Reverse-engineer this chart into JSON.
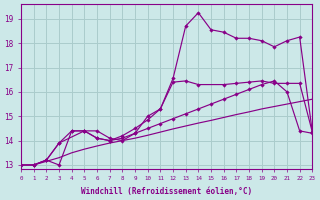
{
  "bg_color": "#cce8e8",
  "grid_color": "#aacccc",
  "line_color": "#880088",
  "xlabel": "Windchill (Refroidissement éolien,°C)",
  "xlim": [
    0,
    23
  ],
  "ylim": [
    12.85,
    19.6
  ],
  "yticks": [
    13,
    14,
    15,
    16,
    17,
    18,
    19
  ],
  "xticks": [
    0,
    1,
    2,
    3,
    4,
    5,
    6,
    7,
    8,
    9,
    10,
    11,
    12,
    13,
    14,
    15,
    16,
    17,
    18,
    19,
    20,
    21,
    22,
    23
  ],
  "line1_x": [
    0,
    1,
    2,
    3,
    4,
    5,
    6,
    7,
    8,
    9,
    10,
    11,
    12,
    13,
    14,
    15,
    16,
    17,
    18,
    19,
    20,
    21,
    22,
    23
  ],
  "line1_y": [
    13.0,
    13.0,
    13.15,
    13.3,
    13.5,
    13.65,
    13.78,
    13.9,
    14.0,
    14.1,
    14.22,
    14.35,
    14.48,
    14.6,
    14.72,
    14.83,
    14.95,
    15.07,
    15.18,
    15.3,
    15.4,
    15.5,
    15.6,
    15.7
  ],
  "line2_x": [
    0,
    1,
    2,
    3,
    4,
    5,
    6,
    7,
    8,
    9,
    10,
    11,
    12,
    13,
    14,
    15,
    16,
    17,
    18,
    19,
    20,
    21,
    22,
    23
  ],
  "line2_y": [
    13.0,
    13.0,
    13.2,
    13.0,
    14.4,
    14.4,
    14.1,
    14.0,
    14.1,
    14.3,
    14.5,
    14.7,
    14.9,
    15.1,
    15.3,
    15.5,
    15.7,
    15.9,
    16.1,
    16.3,
    16.45,
    16.0,
    14.4,
    14.3
  ],
  "line3_x": [
    0,
    1,
    2,
    3,
    4,
    5,
    6,
    7,
    8,
    9,
    10,
    11,
    12,
    13,
    14,
    16,
    17,
    18,
    19,
    20,
    21,
    22,
    23
  ],
  "line3_y": [
    13.0,
    13.0,
    13.2,
    13.9,
    14.4,
    14.4,
    14.1,
    14.0,
    14.2,
    14.5,
    14.85,
    15.3,
    16.4,
    16.45,
    16.3,
    16.3,
    16.35,
    16.4,
    16.45,
    16.35,
    16.35,
    16.35,
    14.35
  ],
  "line4_x": [
    1,
    2,
    3,
    5,
    6,
    7,
    8,
    9,
    10,
    11,
    12,
    13,
    14,
    15,
    16,
    17,
    18,
    19,
    20,
    21,
    22,
    23
  ],
  "line4_y": [
    13.0,
    13.2,
    13.9,
    14.4,
    14.4,
    14.1,
    14.0,
    14.3,
    15.0,
    15.3,
    16.55,
    18.7,
    19.25,
    18.55,
    18.45,
    18.2,
    18.2,
    18.1,
    17.85,
    18.1,
    18.25,
    14.35
  ]
}
